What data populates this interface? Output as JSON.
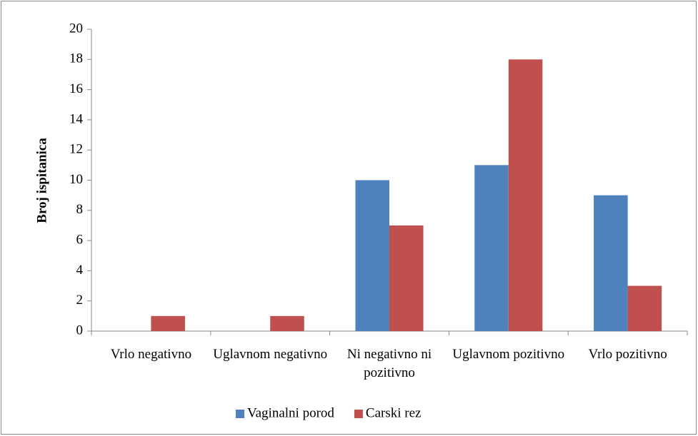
{
  "chart_data": {
    "type": "bar",
    "y_label": "Broj ispitanica",
    "categories": [
      "Vrlo negativno",
      "Uglavnom negativno",
      "Ni negativno ni pozitivno",
      "Uglavnom pozitivno",
      "Vrlo pozitivno"
    ],
    "series": [
      {
        "name": "Vaginalni porod",
        "color": "#4f81bd",
        "values": [
          0,
          0,
          10,
          11,
          9
        ]
      },
      {
        "name": "Carski rez",
        "color": "#c0504d",
        "values": [
          1,
          1,
          7,
          18,
          3
        ]
      }
    ],
    "ylim": [
      0,
      20
    ],
    "yticks": [
      0,
      2,
      4,
      6,
      8,
      10,
      12,
      14,
      16,
      18,
      20
    ],
    "legend": "bottom"
  }
}
